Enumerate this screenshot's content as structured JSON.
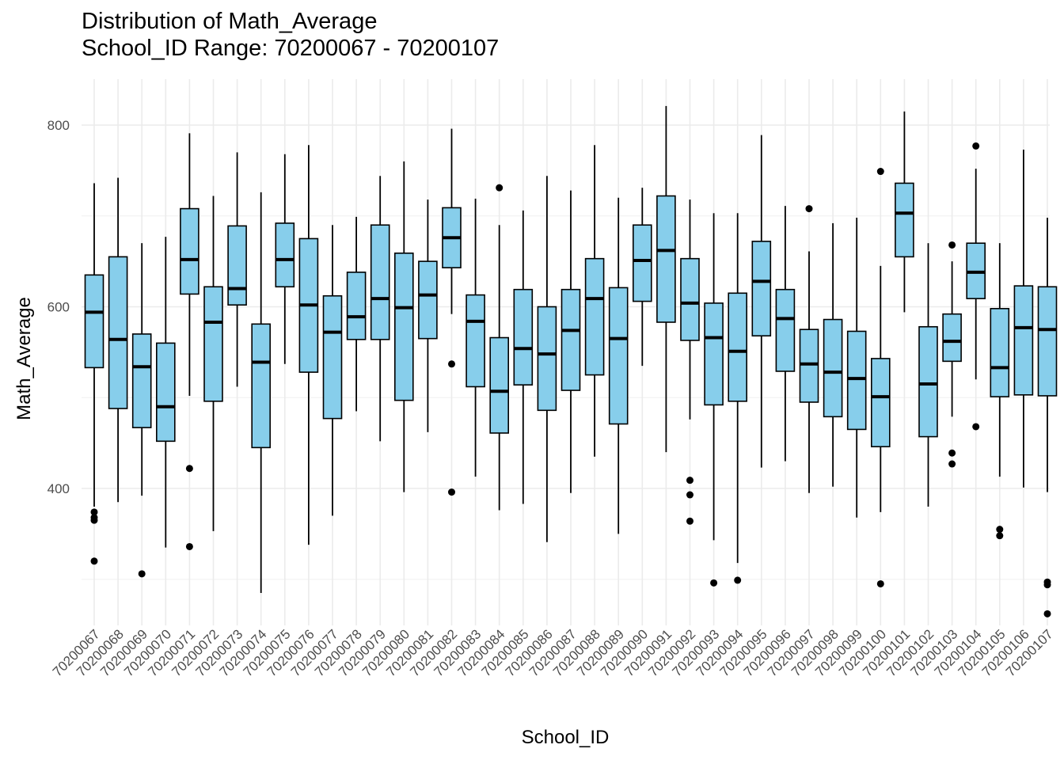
{
  "chart_data": {
    "type": "boxplot",
    "title": "Distribution of Math_Average",
    "subtitle": "School_ID Range: 70200067 - 70200107",
    "xlabel": "School_ID",
    "ylabel": "Math_Average",
    "ylim": [
      230,
      840
    ],
    "yticks": [
      400,
      600,
      800
    ],
    "grid": true,
    "box_color": "#87CEEB",
    "categories": [
      "70200067",
      "70200068",
      "70200069",
      "70200070",
      "70200071",
      "70200072",
      "70200073",
      "70200074",
      "70200075",
      "70200076",
      "70200077",
      "70200078",
      "70200079",
      "70200080",
      "70200081",
      "70200082",
      "70200083",
      "70200084",
      "70200085",
      "70200086",
      "70200087",
      "70200088",
      "70200089",
      "70200090",
      "70200091",
      "70200092",
      "70200093",
      "70200094",
      "70200095",
      "70200096",
      "70200097",
      "70200098",
      "70200099",
      "70200100",
      "70200101",
      "70200102",
      "70200103",
      "70200104",
      "70200105",
      "70200106",
      "70200107"
    ],
    "boxes": [
      {
        "min": 380,
        "q1": 533,
        "median": 594,
        "q3": 635,
        "max": 736,
        "outliers": [
          374,
          368,
          365,
          320
        ]
      },
      {
        "min": 385,
        "q1": 488,
        "median": 564,
        "q3": 655,
        "max": 742,
        "outliers": []
      },
      {
        "min": 392,
        "q1": 467,
        "median": 534,
        "q3": 570,
        "max": 670,
        "outliers": [
          306
        ]
      },
      {
        "min": 335,
        "q1": 452,
        "median": 490,
        "q3": 560,
        "max": 677,
        "outliers": []
      },
      {
        "min": 502,
        "q1": 614,
        "median": 652,
        "q3": 708,
        "max": 791,
        "outliers": [
          422,
          336
        ]
      },
      {
        "min": 353,
        "q1": 496,
        "median": 583,
        "q3": 622,
        "max": 722,
        "outliers": []
      },
      {
        "min": 512,
        "q1": 602,
        "median": 620,
        "q3": 689,
        "max": 770,
        "outliers": []
      },
      {
        "min": 285,
        "q1": 445,
        "median": 539,
        "q3": 581,
        "max": 726,
        "outliers": []
      },
      {
        "min": 537,
        "q1": 622,
        "median": 652,
        "q3": 692,
        "max": 768,
        "outliers": []
      },
      {
        "min": 338,
        "q1": 528,
        "median": 602,
        "q3": 675,
        "max": 778,
        "outliers": []
      },
      {
        "min": 370,
        "q1": 477,
        "median": 572,
        "q3": 612,
        "max": 690,
        "outliers": []
      },
      {
        "min": 485,
        "q1": 564,
        "median": 589,
        "q3": 638,
        "max": 699,
        "outliers": []
      },
      {
        "min": 452,
        "q1": 564,
        "median": 609,
        "q3": 690,
        "max": 744,
        "outliers": []
      },
      {
        "min": 396,
        "q1": 497,
        "median": 599,
        "q3": 659,
        "max": 760,
        "outliers": []
      },
      {
        "min": 462,
        "q1": 565,
        "median": 613,
        "q3": 650,
        "max": 718,
        "outliers": []
      },
      {
        "min": 592,
        "q1": 643,
        "median": 676,
        "q3": 709,
        "max": 796,
        "outliers": [
          537,
          396
        ]
      },
      {
        "min": 413,
        "q1": 512,
        "median": 584,
        "q3": 613,
        "max": 719,
        "outliers": []
      },
      {
        "min": 376,
        "q1": 461,
        "median": 507,
        "q3": 566,
        "max": 690,
        "outliers": [
          731
        ]
      },
      {
        "min": 383,
        "q1": 514,
        "median": 554,
        "q3": 619,
        "max": 706,
        "outliers": []
      },
      {
        "min": 341,
        "q1": 486,
        "median": 548,
        "q3": 600,
        "max": 744,
        "outliers": []
      },
      {
        "min": 395,
        "q1": 508,
        "median": 574,
        "q3": 619,
        "max": 728,
        "outliers": []
      },
      {
        "min": 435,
        "q1": 525,
        "median": 609,
        "q3": 653,
        "max": 778,
        "outliers": []
      },
      {
        "min": 350,
        "q1": 471,
        "median": 565,
        "q3": 621,
        "max": 720,
        "outliers": []
      },
      {
        "min": 535,
        "q1": 606,
        "median": 651,
        "q3": 690,
        "max": 731,
        "outliers": []
      },
      {
        "min": 440,
        "q1": 583,
        "median": 662,
        "q3": 722,
        "max": 821,
        "outliers": []
      },
      {
        "min": 476,
        "q1": 563,
        "median": 604,
        "q3": 653,
        "max": 718,
        "outliers": [
          409,
          393,
          364
        ]
      },
      {
        "min": 343,
        "q1": 492,
        "median": 566,
        "q3": 604,
        "max": 703,
        "outliers": [
          296
        ]
      },
      {
        "min": 318,
        "q1": 496,
        "median": 551,
        "q3": 615,
        "max": 703,
        "outliers": [
          299
        ]
      },
      {
        "min": 423,
        "q1": 568,
        "median": 628,
        "q3": 672,
        "max": 789,
        "outliers": []
      },
      {
        "min": 430,
        "q1": 529,
        "median": 587,
        "q3": 619,
        "max": 711,
        "outliers": []
      },
      {
        "min": 395,
        "q1": 495,
        "median": 537,
        "q3": 575,
        "max": 661,
        "outliers": [
          708
        ]
      },
      {
        "min": 402,
        "q1": 479,
        "median": 528,
        "q3": 586,
        "max": 692,
        "outliers": []
      },
      {
        "min": 368,
        "q1": 465,
        "median": 521,
        "q3": 573,
        "max": 698,
        "outliers": []
      },
      {
        "min": 374,
        "q1": 446,
        "median": 501,
        "q3": 543,
        "max": 645,
        "outliers": [
          749,
          295
        ]
      },
      {
        "min": 594,
        "q1": 655,
        "median": 703,
        "q3": 736,
        "max": 815,
        "outliers": []
      },
      {
        "min": 380,
        "q1": 457,
        "median": 515,
        "q3": 578,
        "max": 670,
        "outliers": []
      },
      {
        "min": 479,
        "q1": 540,
        "median": 562,
        "q3": 592,
        "max": 650,
        "outliers": [
          668,
          439,
          427
        ]
      },
      {
        "min": 520,
        "q1": 609,
        "median": 638,
        "q3": 670,
        "max": 752,
        "outliers": [
          777,
          468
        ]
      },
      {
        "min": 413,
        "q1": 501,
        "median": 533,
        "q3": 598,
        "max": 670,
        "outliers": [
          355,
          348
        ]
      },
      {
        "min": 401,
        "q1": 503,
        "median": 577,
        "q3": 623,
        "max": 773,
        "outliers": []
      },
      {
        "min": 396,
        "q1": 502,
        "median": 575,
        "q3": 622,
        "max": 698,
        "outliers": [
          297,
          294,
          262
        ]
      }
    ]
  }
}
